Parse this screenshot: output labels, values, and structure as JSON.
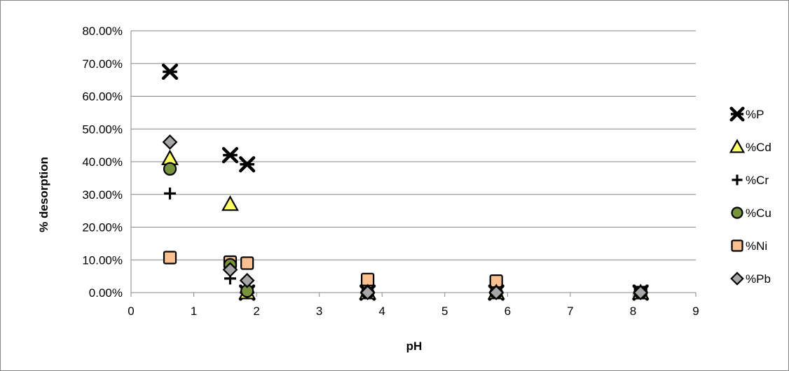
{
  "chart_data": {
    "type": "scatter",
    "title": "",
    "xlabel": "pH",
    "ylabel": "% desorption",
    "xlim": [
      0,
      9
    ],
    "ylim": [
      0,
      0.8
    ],
    "x_ticks": [
      "0",
      "1",
      "2",
      "3",
      "4",
      "5",
      "6",
      "7",
      "8",
      "9"
    ],
    "y_ticks": [
      "0.00%",
      "10.00%",
      "20.00%",
      "30.00%",
      "40.00%",
      "50.00%",
      "60.00%",
      "70.00%",
      "80.00%"
    ],
    "grid": "horizontal",
    "legend_position": "right",
    "series": [
      {
        "name": "%P",
        "marker": "star",
        "fill": "#000000",
        "points": [
          [
            0.62,
            0.675
          ],
          [
            1.58,
            0.42
          ],
          [
            1.85,
            0.392
          ],
          [
            1.85,
            0.0
          ],
          [
            3.77,
            0.0
          ],
          [
            5.82,
            0.0
          ],
          [
            8.12,
            0.0
          ]
        ]
      },
      {
        "name": "%Cd",
        "marker": "triangle",
        "fill": "#ffff66",
        "points": [
          [
            0.62,
            0.41
          ],
          [
            1.58,
            0.27
          ],
          [
            1.85,
            0.0
          ],
          [
            3.77,
            0.0
          ],
          [
            5.82,
            0.0
          ],
          [
            8.12,
            0.0
          ]
        ]
      },
      {
        "name": "%Cr",
        "marker": "plus",
        "fill": "#000000",
        "points": [
          [
            0.62,
            0.303
          ],
          [
            1.58,
            0.043
          ],
          [
            1.85,
            0.0
          ],
          [
            3.77,
            0.0
          ],
          [
            5.82,
            0.0
          ],
          [
            8.12,
            0.0
          ]
        ]
      },
      {
        "name": "%Cu",
        "marker": "circle",
        "fill": "#77933c",
        "points": [
          [
            0.62,
            0.378
          ],
          [
            1.58,
            0.085
          ],
          [
            1.85,
            0.005
          ],
          [
            3.77,
            0.0
          ],
          [
            5.82,
            0.0
          ],
          [
            8.12,
            0.0
          ]
        ]
      },
      {
        "name": "%Ni",
        "marker": "square",
        "fill": "#fac090",
        "points": [
          [
            0.62,
            0.107
          ],
          [
            1.58,
            0.093
          ],
          [
            1.85,
            0.09
          ],
          [
            3.77,
            0.04
          ],
          [
            5.82,
            0.035
          ],
          [
            8.12,
            0.0
          ]
        ]
      },
      {
        "name": "%Pb",
        "marker": "diamond",
        "fill": "#a6a6a6",
        "points": [
          [
            0.62,
            0.46
          ],
          [
            1.58,
            0.07
          ],
          [
            1.85,
            0.037
          ],
          [
            3.77,
            0.0
          ],
          [
            5.82,
            0.0
          ],
          [
            8.12,
            0.0
          ]
        ]
      }
    ]
  }
}
